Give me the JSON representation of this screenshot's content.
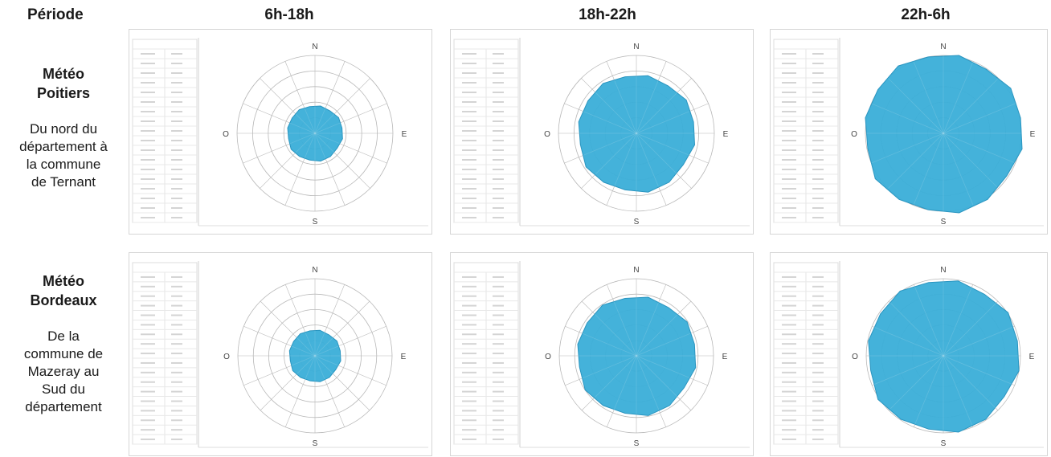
{
  "header": {
    "period_label": "Période",
    "columns": [
      "6h-18h",
      "18h-22h",
      "22h-6h"
    ]
  },
  "rows": [
    {
      "title_lines": [
        "Météo",
        "Poitiers"
      ],
      "desc_lines": [
        "Du nord du",
        "département à",
        "la commune",
        "de Ternant"
      ]
    },
    {
      "title_lines": [
        "Météo",
        "Bordeaux"
      ],
      "desc_lines": [
        "De la",
        "commune de",
        "Mazeray au",
        "Sud du",
        "département"
      ]
    }
  ],
  "compass": {
    "north": "N",
    "east": "E",
    "south": "S",
    "west": "O"
  },
  "style": {
    "fill_color": "#3aaed8",
    "grid_color": "#b8b8b8",
    "panel_border": "#d6d6d6"
  },
  "roses": [
    {
      "row": 0,
      "col": 0,
      "level": 0.35
    },
    {
      "row": 0,
      "col": 1,
      "level": 0.74
    },
    {
      "row": 0,
      "col": 2,
      "level": 1.0
    },
    {
      "row": 1,
      "col": 0,
      "level": 0.33
    },
    {
      "row": 1,
      "col": 1,
      "level": 0.76
    },
    {
      "row": 1,
      "col": 2,
      "level": 0.97
    }
  ]
}
